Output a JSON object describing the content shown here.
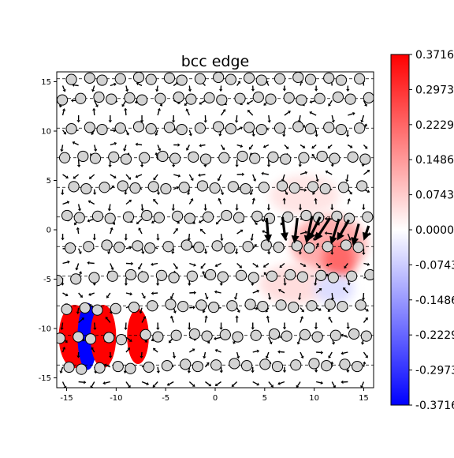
{
  "chart_data": {
    "type": "heatmap",
    "title": "bcc edge",
    "xlabel": "",
    "ylabel": "",
    "xlim": [
      -16,
      16
    ],
    "ylim": [
      -16,
      16
    ],
    "x_ticks": [
      -15,
      -10,
      -5,
      0,
      5,
      10,
      15
    ],
    "y_ticks": [
      -15,
      -10,
      -5,
      0,
      5,
      10,
      15
    ],
    "grid": false,
    "colormap": "bwr",
    "colors": {
      "negative": "#0000ff",
      "zero": "#ffffff",
      "positive": "#ff0000",
      "atom_fill": "#d3d3d3",
      "atom_edge": "#000000",
      "arrow": "#000000"
    },
    "colorbar": {
      "vmin": -0.3716,
      "vmax": 0.3716,
      "ticks": [
        0.3716,
        0.2973,
        0.2229,
        0.1486,
        0.0743,
        0.0,
        -0.0743,
        -0.1486,
        -0.2229,
        -0.2973,
        -0.3716
      ],
      "tick_labels": [
        "0.3716",
        "0.2973",
        "0.2229",
        "0.1486",
        "0.0743",
        "0.0000",
        "-0.0743",
        "-0.1486",
        "-0.2229",
        "-0.2973",
        "-0.3716"
      ]
    },
    "atom_rows": [
      {
        "y": 15.3,
        "x_start": -14.4,
        "step": 1.61,
        "count": 19
      },
      {
        "y": 13.3,
        "x_start": -15.2,
        "step": 1.61,
        "count": 20
      },
      {
        "y": 10.3,
        "x_start": -14.4,
        "step": 1.61,
        "count": 19
      },
      {
        "y": 7.3,
        "x_start": -15.2,
        "step": 1.61,
        "count": 20
      },
      {
        "y": 4.3,
        "x_start": -14.4,
        "step": 1.61,
        "count": 19
      },
      {
        "y": 1.3,
        "x_start": -15.2,
        "step": 1.61,
        "count": 20
      },
      {
        "y": -1.7,
        "x_start": -14.4,
        "step": 1.61,
        "count": 19
      },
      {
        "y": -4.7,
        "x_start": -15.2,
        "step": 1.61,
        "count": 20
      },
      {
        "y": -7.7,
        "x_start": -14.4,
        "step": 1.61,
        "count": 19
      },
      {
        "y": -10.7,
        "x_start": -15.2,
        "step": 1.61,
        "count": 20
      },
      {
        "y": -13.7,
        "x_start": -14.4,
        "step": 1.61,
        "count": 19
      }
    ],
    "field_regions": [
      {
        "x": -14.2,
        "y": -10.8,
        "rx": 1.6,
        "ry": 3.2,
        "value": 0.3716
      },
      {
        "x": -12.9,
        "y": -10.8,
        "rx": 1.0,
        "ry": 3.4,
        "value": -0.3716
      },
      {
        "x": -11.3,
        "y": -10.8,
        "rx": 1.3,
        "ry": 3.2,
        "value": 0.3716
      },
      {
        "x": -7.8,
        "y": -10.8,
        "rx": 1.1,
        "ry": 2.8,
        "value": 0.3716
      },
      {
        "x": 11.5,
        "y": -1.5,
        "rx": 3.8,
        "ry": 3.0,
        "value": 0.12
      },
      {
        "x": 12.5,
        "y": -3.0,
        "rx": 1.6,
        "ry": 2.0,
        "value": 0.22
      },
      {
        "x": 9.0,
        "y": 3.5,
        "rx": 3.5,
        "ry": 2.0,
        "value": 0.04
      },
      {
        "x": 8.0,
        "y": -5.5,
        "rx": 3.5,
        "ry": 2.0,
        "value": 0.05
      },
      {
        "x": 12.0,
        "y": -6.0,
        "rx": 2.0,
        "ry": 1.5,
        "value": -0.05
      }
    ],
    "arrow_field": {
      "x_step": 1.6,
      "y_step": 1.5,
      "unit_length": 0.9
    },
    "large_arrows": [
      {
        "x": 5.2,
        "y": 1.2,
        "dx": 0.2,
        "dy": -2.5
      },
      {
        "x": 6.8,
        "y": 1.3,
        "dx": 0.3,
        "dy": -2.4
      },
      {
        "x": 8.3,
        "y": 1.2,
        "dx": -0.3,
        "dy": -2.6
      },
      {
        "x": 9.8,
        "y": 1.4,
        "dx": -0.6,
        "dy": -2.8
      },
      {
        "x": 10.6,
        "y": 1.3,
        "dx": -1.2,
        "dy": -2.4
      },
      {
        "x": 11.6,
        "y": 1.2,
        "dx": -1.5,
        "dy": -2.3
      },
      {
        "x": 12.5,
        "y": 1.1,
        "dx": -0.8,
        "dy": -2.6
      },
      {
        "x": 13.5,
        "y": 1.0,
        "dx": -1.2,
        "dy": -2.1
      },
      {
        "x": 14.5,
        "y": 0.6,
        "dx": -0.6,
        "dy": -2.2
      },
      {
        "x": 15.5,
        "y": 0.4,
        "dx": -0.5,
        "dy": -1.5
      }
    ]
  }
}
